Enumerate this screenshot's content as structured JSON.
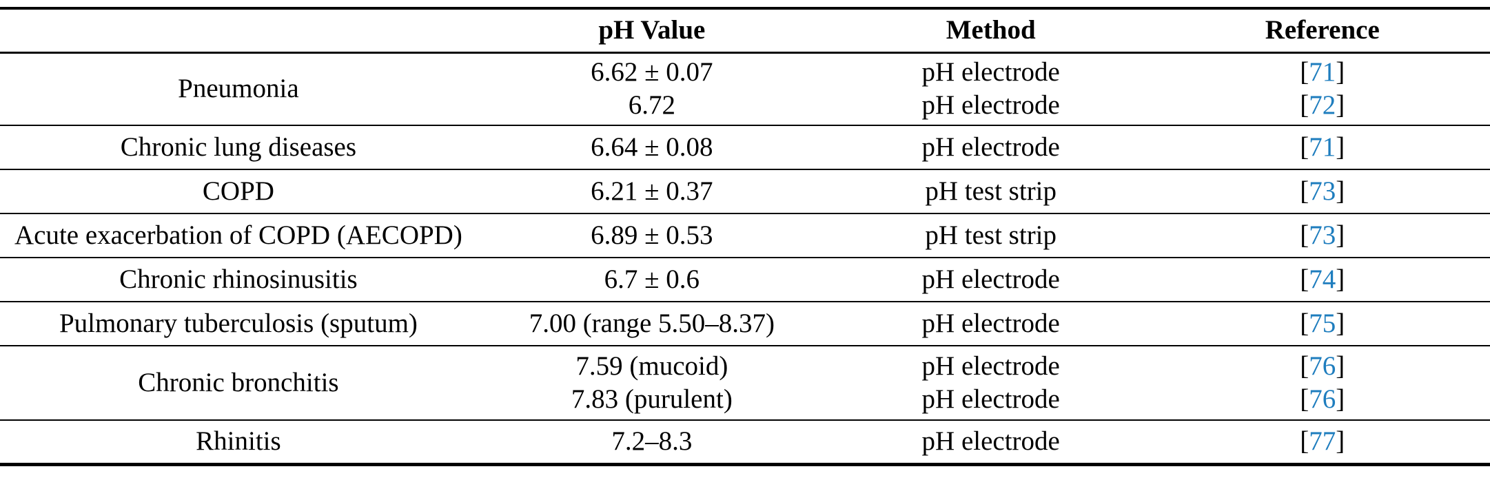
{
  "colors": {
    "reference_link": "#1E7DBE",
    "rule": "#000000",
    "text": "#000000"
  },
  "table": {
    "columns": [
      "",
      "pH Value",
      "Method",
      "Reference"
    ],
    "ref_brackets": {
      "open": "[",
      "close": "]"
    },
    "rows": [
      {
        "condition": "Pneumonia",
        "entries": [
          {
            "ph": "6.62 ± 0.07",
            "method": "pH electrode",
            "ref": "71"
          },
          {
            "ph": "6.72",
            "method": "pH electrode",
            "ref": "72"
          }
        ]
      },
      {
        "condition": "Chronic lung diseases",
        "entries": [
          {
            "ph": "6.64 ± 0.08",
            "method": "pH electrode",
            "ref": "71"
          }
        ]
      },
      {
        "condition": "COPD",
        "entries": [
          {
            "ph": "6.21 ± 0.37",
            "method": "pH test strip",
            "ref": "73"
          }
        ]
      },
      {
        "condition": "Acute exacerbation of COPD (AECOPD)",
        "entries": [
          {
            "ph": "6.89 ± 0.53",
            "method": "pH test strip",
            "ref": "73"
          }
        ]
      },
      {
        "condition": "Chronic rhinosinusitis",
        "entries": [
          {
            "ph": "6.7 ± 0.6",
            "method": "pH electrode",
            "ref": "74"
          }
        ]
      },
      {
        "condition": "Pulmonary tuberculosis (sputum)",
        "entries": [
          {
            "ph": "7.00 (range 5.50–8.37)",
            "method": "pH electrode",
            "ref": "75"
          }
        ]
      },
      {
        "condition": "Chronic bronchitis",
        "entries": [
          {
            "ph": "7.59 (mucoid)",
            "method": "pH electrode",
            "ref": "76"
          },
          {
            "ph": "7.83 (purulent)",
            "method": "pH electrode",
            "ref": "76"
          }
        ]
      },
      {
        "condition": "Rhinitis",
        "entries": [
          {
            "ph": "7.2–8.3",
            "method": "pH electrode",
            "ref": "77"
          }
        ]
      }
    ]
  }
}
